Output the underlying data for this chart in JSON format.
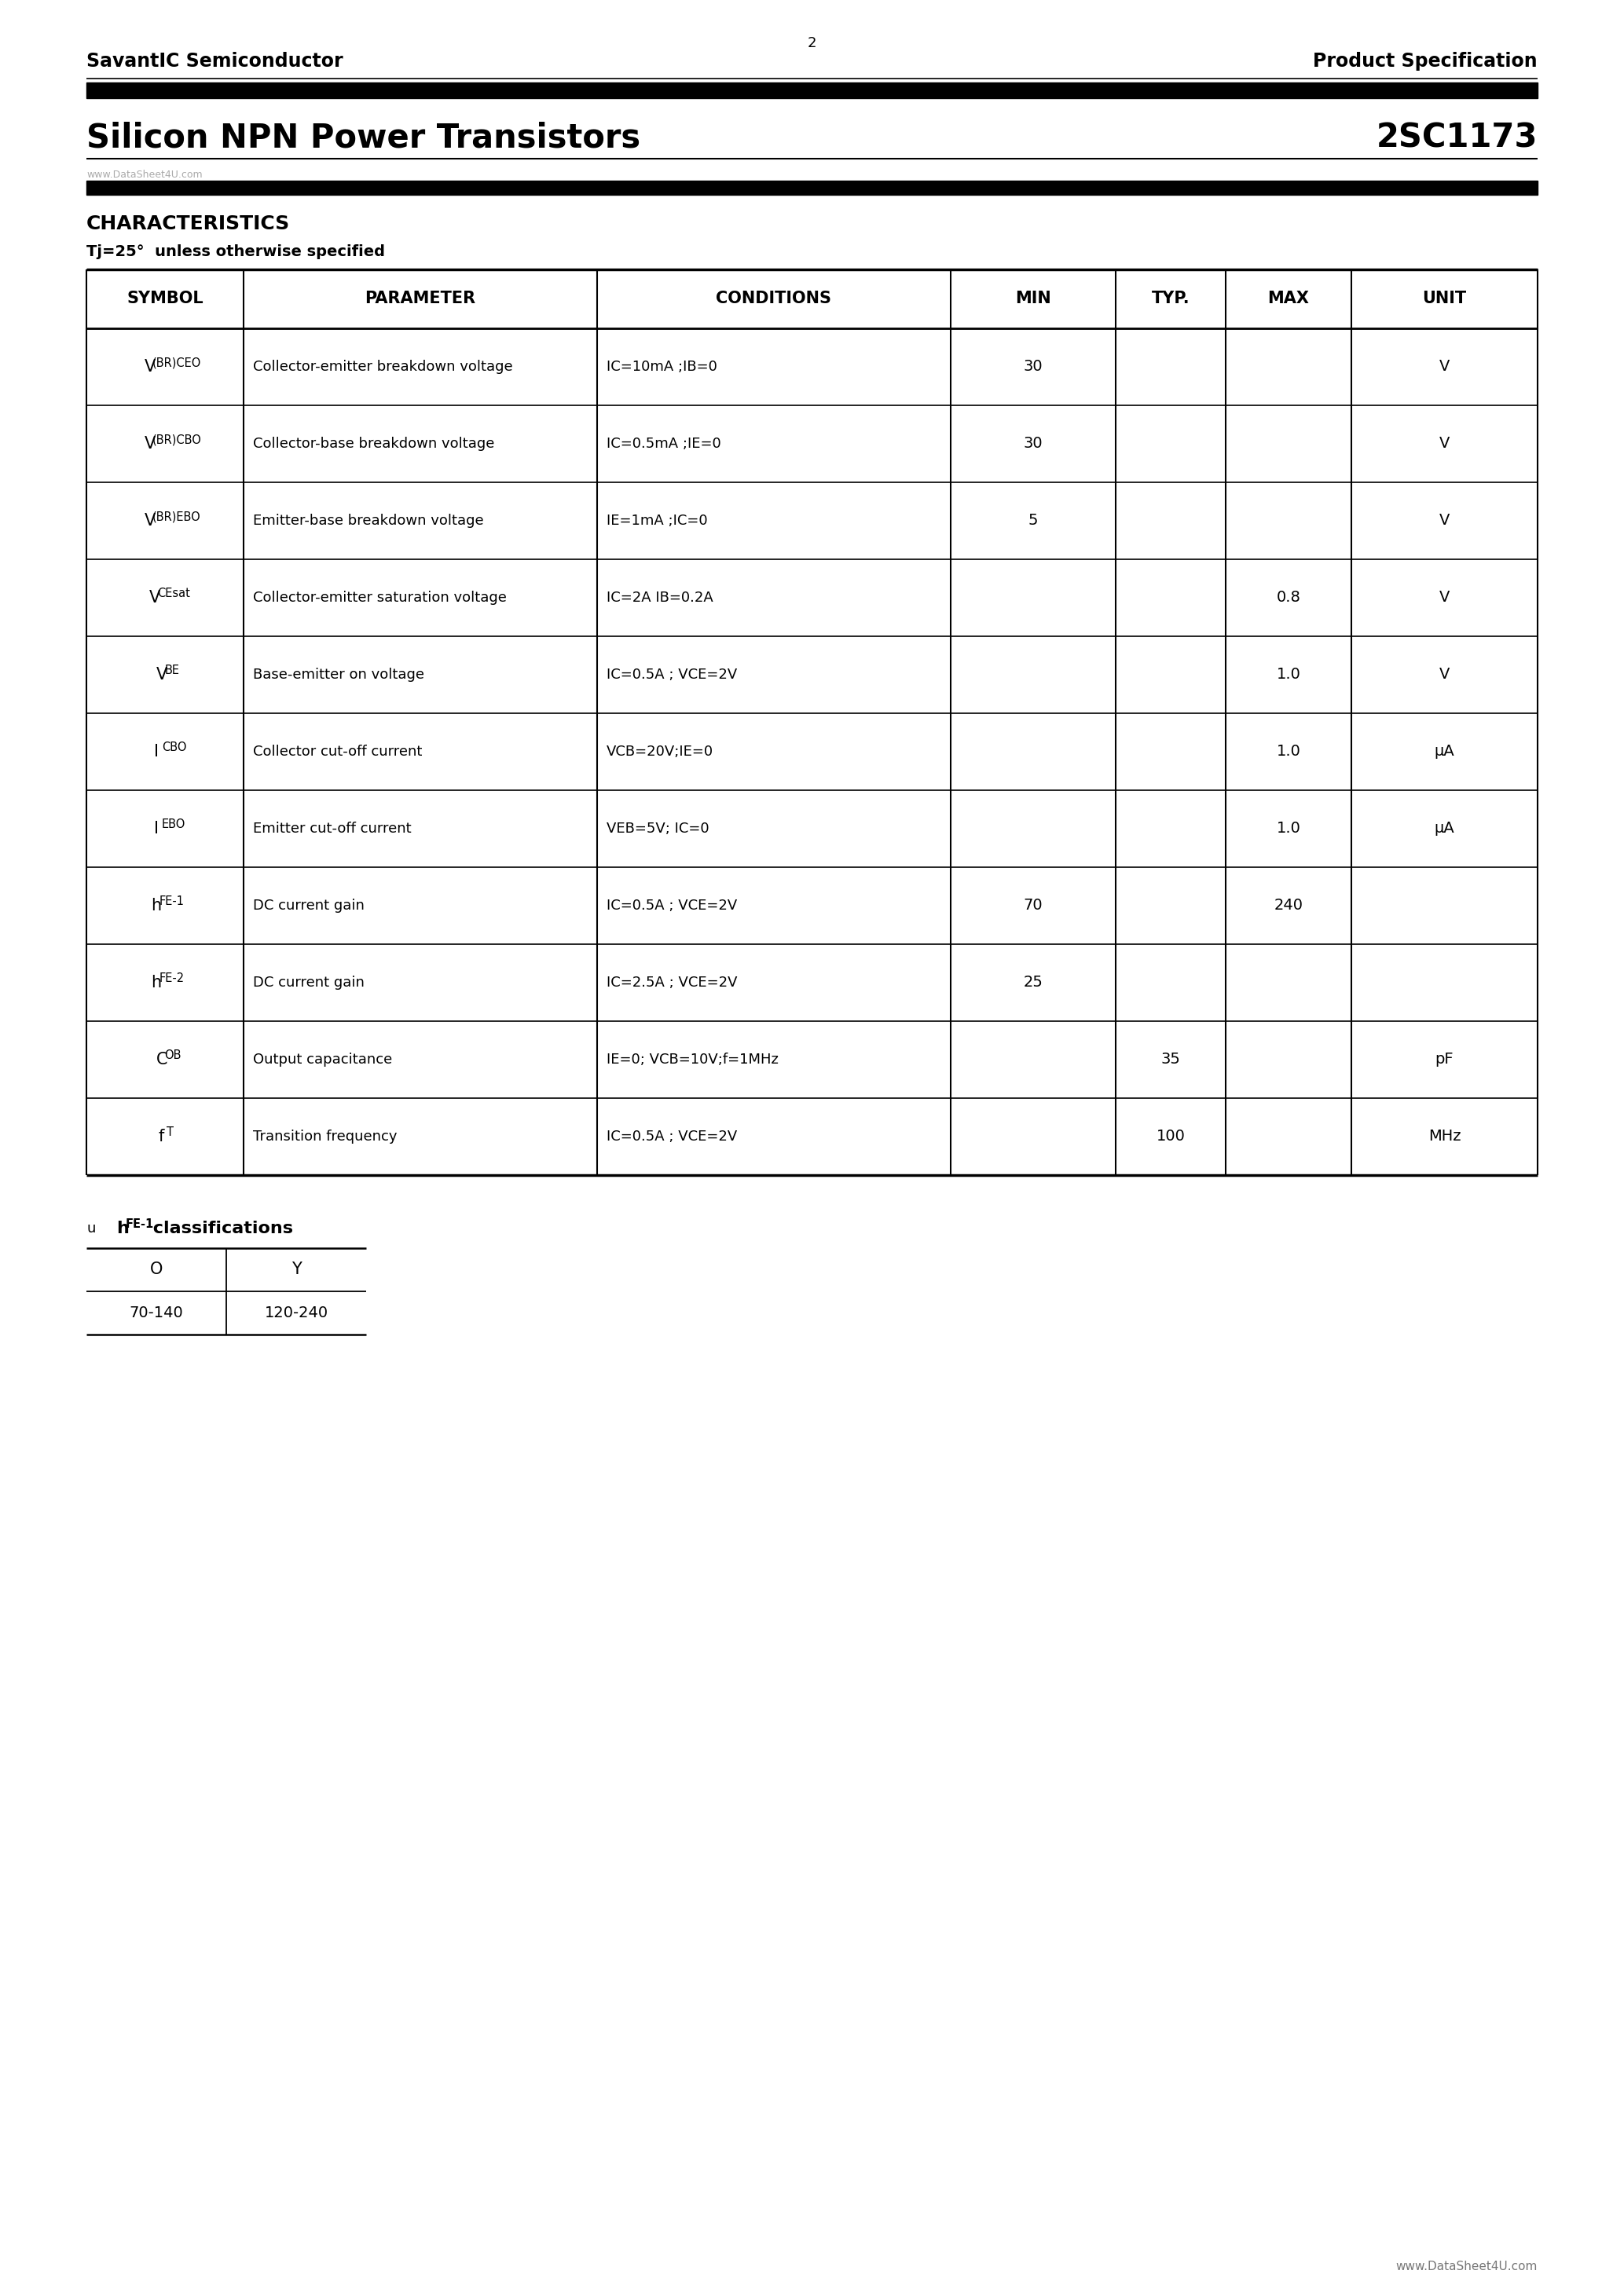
{
  "header_left": "SavantIC Semiconductor",
  "header_right": "Product Specification",
  "title_left": "Silicon NPN Power Transistors",
  "title_right": "2SC1173",
  "section_title": "CHARACTERISTICS",
  "temp_note": "Tj=25°  unless otherwise specified",
  "table_headers": [
    "SYMBOL",
    "PARAMETER",
    "CONDITIONS",
    "MIN",
    "TYP.",
    "MAX",
    "UNIT"
  ],
  "table_rows": [
    [
      "V(BR)CEO",
      "Collector-emitter breakdown voltage",
      "IC=10mA ;IB=0",
      "30",
      "",
      "",
      "V"
    ],
    [
      "V(BR)CBO",
      "Collector-base breakdown voltage",
      "IC=0.5mA ;IE=0",
      "30",
      "",
      "",
      "V"
    ],
    [
      "V(BR)EBO",
      "Emitter-base breakdown voltage",
      "IE=1mA ;IC=0",
      "5",
      "",
      "",
      "V"
    ],
    [
      "VCEsat",
      "Collector-emitter saturation voltage",
      "IC=2A IB=0.2A",
      "",
      "",
      "0.8",
      "V"
    ],
    [
      "VBE",
      "Base-emitter on voltage",
      "IC=0.5A ; VCE=2V",
      "",
      "",
      "1.0",
      "V"
    ],
    [
      "ICBO",
      "Collector cut-off current",
      "VCB=20V;IE=0",
      "",
      "",
      "1.0",
      "μA"
    ],
    [
      "IEBO",
      "Emitter cut-off current",
      "VEB=5V; IC=0",
      "",
      "",
      "1.0",
      "μA"
    ],
    [
      "hFE-1",
      "DC current gain",
      "IC=0.5A ; VCE=2V",
      "70",
      "",
      "240",
      ""
    ],
    [
      "hFE-2",
      "DC current gain",
      "IC=2.5A ; VCE=2V",
      "25",
      "",
      "",
      ""
    ],
    [
      "COB",
      "Output capacitance",
      "IE=0; VCB=10V;f=1MHz",
      "",
      "35",
      "",
      "pF"
    ],
    [
      "fT",
      "Transition frequency",
      "IC=0.5A ; VCE=2V",
      "",
      "100",
      "",
      "MHz"
    ]
  ],
  "symbols": [
    {
      "main": "V",
      "sub": "(BR)CEO"
    },
    {
      "main": "V",
      "sub": "(BR)CBO"
    },
    {
      "main": "V",
      "sub": "(BR)EBO"
    },
    {
      "main": "V",
      "sub": "CEsat"
    },
    {
      "main": "V",
      "sub": "BE"
    },
    {
      "main": "I",
      "sub": "CBO"
    },
    {
      "main": "I",
      "sub": "EBO"
    },
    {
      "main": "h",
      "sub": "FE-1"
    },
    {
      "main": "h",
      "sub": "FE-2"
    },
    {
      "main": "C",
      "sub": "OB"
    },
    {
      "main": "f",
      "sub": "T"
    }
  ],
  "hfe_table_headers": [
    "O",
    "Y"
  ],
  "hfe_table_values": [
    "70-140",
    "120-240"
  ],
  "footer_page": "2",
  "footer_url": "www.DataSheet4U.com",
  "watermark": "www.DataSheet4U.com",
  "bg_color": "#ffffff",
  "text_color": "#000000"
}
